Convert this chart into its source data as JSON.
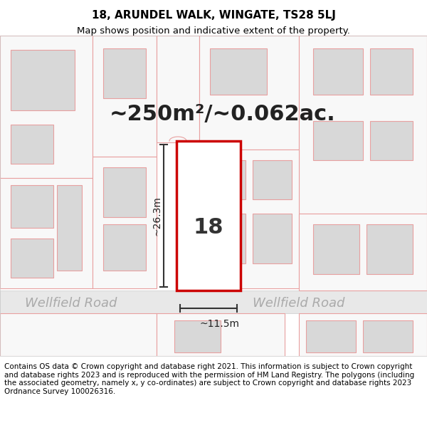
{
  "title": "18, ARUNDEL WALK, WINGATE, TS28 5LJ",
  "subtitle": "Map shows position and indicative extent of the property.",
  "area_label": "~250m²/~0.062ac.",
  "number_label": "18",
  "width_label": "~11.5m",
  "height_label": "~26.3m",
  "road_label": "Wellfield Road",
  "footer": "Contains OS data © Crown copyright and database right 2021. This information is subject to Crown copyright and database rights 2023 and is reproduced with the permission of HM Land Registry. The polygons (including the associated geometry, namely x, y co-ordinates) are subject to Crown copyright and database rights 2023 Ordnance Survey 100026316.",
  "bg_color": "#f5f5f0",
  "map_bg": "#ffffff",
  "road_color": "#e8e8e8",
  "building_fill": "#d8d8d8",
  "building_edge_light": "#e8a0a0",
  "building_edge_dark": "#c08080",
  "highlight_fill": "#ffffff",
  "highlight_edge": "#cc0000",
  "title_fontsize": 11,
  "subtitle_fontsize": 9.5,
  "area_fontsize": 22,
  "number_fontsize": 22,
  "road_fontsize": 13,
  "dim_fontsize": 10,
  "footer_fontsize": 7.5
}
